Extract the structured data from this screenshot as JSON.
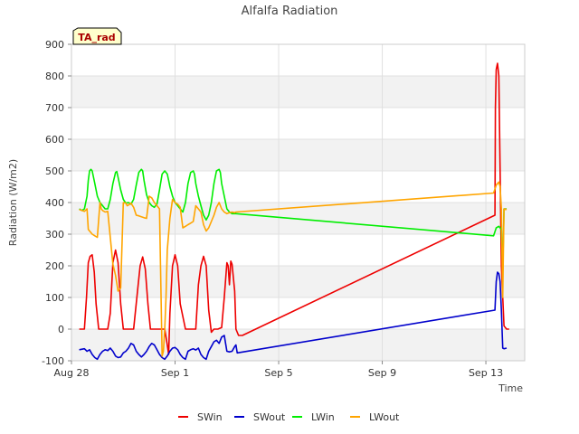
{
  "chart_data": {
    "type": "line",
    "title": "Alfalfa Radiation",
    "badge": "TA_rad",
    "xlabel": "Time",
    "ylabel": "Radiation (W/m2)",
    "xlim": [
      0,
      17.5
    ],
    "ylim": [
      -100,
      900
    ],
    "yticks": [
      -100,
      0,
      100,
      200,
      300,
      400,
      500,
      600,
      700,
      800,
      900
    ],
    "xticks": [
      {
        "value": 0,
        "label": "Aug 28"
      },
      {
        "value": 4,
        "label": "Sep 1"
      },
      {
        "value": 8,
        "label": "Sep 5"
      },
      {
        "value": 12,
        "label": "Sep 9"
      },
      {
        "value": 16,
        "label": "Sep 13"
      }
    ],
    "grid": true,
    "legend_position": "bottom",
    "colors": {
      "SWin": "#ee0000",
      "SWout": "#0000cc",
      "LWin": "#00ee00",
      "LWout": "#ffa500"
    },
    "series": [
      {
        "name": "SWin",
        "x": [
          0.3,
          0.5,
          0.58,
          0.65,
          0.72,
          0.8,
          0.88,
          0.95,
          1.05,
          1.15,
          1.4,
          1.5,
          1.6,
          1.7,
          1.8,
          1.9,
          2.0,
          2.2,
          2.4,
          2.55,
          2.65,
          2.75,
          2.85,
          2.95,
          3.05,
          3.2,
          3.4,
          3.6,
          3.7,
          3.75,
          3.8,
          3.9,
          4.0,
          4.1,
          4.2,
          4.4,
          4.6,
          4.8,
          4.9,
          5.0,
          5.1,
          5.2,
          5.3,
          5.4,
          5.5,
          5.65,
          5.8,
          5.9,
          6.0,
          6.05,
          6.1,
          6.15,
          6.2,
          6.3,
          6.35,
          6.45,
          6.6,
          16.35,
          16.37,
          16.4,
          16.45,
          16.5,
          16.55,
          16.6,
          16.7,
          16.8,
          16.9
        ],
        "y": [
          0,
          0,
          100,
          210,
          230,
          235,
          180,
          80,
          0,
          0,
          0,
          50,
          210,
          250,
          210,
          80,
          0,
          0,
          0,
          120,
          200,
          228,
          190,
          80,
          0,
          0,
          0,
          0,
          -50,
          -80,
          50,
          200,
          235,
          200,
          80,
          0,
          0,
          0,
          140,
          200,
          230,
          200,
          60,
          -10,
          0,
          0,
          5,
          100,
          210,
          200,
          140,
          215,
          205,
          120,
          0,
          -20,
          -20,
          360,
          700,
          820,
          840,
          800,
          500,
          200,
          10,
          0,
          0
        ]
      },
      {
        "name": "SWout",
        "x": [
          0.3,
          0.5,
          0.6,
          0.7,
          0.8,
          0.9,
          1.0,
          1.1,
          1.2,
          1.3,
          1.4,
          1.5,
          1.6,
          1.7,
          1.8,
          1.9,
          2.0,
          2.1,
          2.2,
          2.3,
          2.4,
          2.5,
          2.6,
          2.7,
          2.8,
          2.9,
          3.0,
          3.1,
          3.2,
          3.3,
          3.4,
          3.5,
          3.6,
          3.7,
          3.8,
          3.9,
          4.0,
          4.1,
          4.2,
          4.3,
          4.4,
          4.5,
          4.6,
          4.7,
          4.8,
          4.9,
          5.0,
          5.1,
          5.2,
          5.3,
          5.4,
          5.5,
          5.6,
          5.7,
          5.8,
          5.9,
          6.0,
          6.1,
          6.2,
          6.3,
          6.35,
          6.4,
          16.35,
          16.4,
          16.45,
          16.5,
          16.55,
          16.6,
          16.65,
          16.7,
          16.8
        ],
        "y": [
          -65,
          -62,
          -70,
          -65,
          -80,
          -90,
          -95,
          -80,
          -70,
          -65,
          -68,
          -60,
          -70,
          -85,
          -90,
          -88,
          -75,
          -70,
          -60,
          -45,
          -50,
          -70,
          -80,
          -88,
          -80,
          -70,
          -55,
          -45,
          -50,
          -65,
          -80,
          -90,
          -95,
          -85,
          -70,
          -60,
          -58,
          -65,
          -80,
          -90,
          -95,
          -70,
          -65,
          -62,
          -66,
          -60,
          -80,
          -90,
          -95,
          -70,
          -55,
          -40,
          -35,
          -45,
          -25,
          -20,
          -70,
          -72,
          -70,
          -55,
          -50,
          -75,
          60,
          150,
          180,
          175,
          150,
          60,
          -60,
          -62,
          -60
        ]
      },
      {
        "name": "LWin",
        "x": [
          0.3,
          0.4,
          0.5,
          0.6,
          0.65,
          0.7,
          0.75,
          0.8,
          0.9,
          1.0,
          1.1,
          1.2,
          1.3,
          1.4,
          1.5,
          1.6,
          1.7,
          1.75,
          1.8,
          1.9,
          2.0,
          2.1,
          2.2,
          2.3,
          2.4,
          2.5,
          2.6,
          2.7,
          2.75,
          2.8,
          2.9,
          3.0,
          3.1,
          3.2,
          3.3,
          3.4,
          3.5,
          3.6,
          3.7,
          3.75,
          3.8,
          3.9,
          4.0,
          4.1,
          4.2,
          4.3,
          4.4,
          4.5,
          4.6,
          4.7,
          4.75,
          4.8,
          4.9,
          5.0,
          5.1,
          5.2,
          5.3,
          5.4,
          5.5,
          5.6,
          5.7,
          5.75,
          5.8,
          5.9,
          6.0,
          6.1,
          6.2,
          6.3,
          6.35,
          16.3,
          16.4,
          16.5,
          16.6,
          16.65,
          16.7,
          16.8
        ],
        "y": [
          380,
          375,
          380,
          420,
          470,
          500,
          505,
          500,
          460,
          420,
          400,
          390,
          380,
          380,
          410,
          460,
          495,
          498,
          480,
          440,
          410,
          398,
          400,
          395,
          410,
          455,
          495,
          505,
          500,
          470,
          425,
          400,
          390,
          385,
          395,
          440,
          490,
          500,
          490,
          470,
          450,
          420,
          400,
          390,
          380,
          370,
          400,
          460,
          495,
          500,
          490,
          460,
          420,
          390,
          360,
          345,
          360,
          400,
          460,
          500,
          505,
          495,
          460,
          420,
          380,
          370,
          365,
          365,
          365,
          295,
          320,
          325,
          315,
          180,
          380,
          380
        ]
      },
      {
        "name": "LWout",
        "x": [
          0.3,
          0.4,
          0.5,
          0.6,
          0.65,
          0.7,
          0.75,
          0.8,
          0.9,
          1.0,
          1.1,
          1.15,
          1.2,
          1.3,
          1.4,
          1.5,
          1.6,
          1.7,
          1.8,
          1.9,
          2.0,
          2.1,
          2.15,
          2.2,
          2.3,
          2.4,
          2.5,
          2.6,
          2.7,
          2.8,
          2.9,
          3.0,
          3.1,
          3.2,
          3.3,
          3.4,
          3.5,
          3.55,
          3.6,
          3.65,
          3.7,
          3.8,
          3.9,
          4.0,
          4.1,
          4.2,
          4.3,
          4.4,
          4.5,
          4.6,
          4.7,
          4.8,
          4.9,
          5.0,
          5.1,
          5.2,
          5.3,
          5.4,
          5.5,
          5.6,
          5.7,
          5.8,
          5.9,
          6.0,
          6.1,
          6.2,
          6.3,
          6.35,
          16.3,
          16.4,
          16.5,
          16.55,
          16.6,
          16.65,
          16.7,
          16.8
        ],
        "y": [
          378,
          375,
          372,
          380,
          315,
          310,
          305,
          300,
          295,
          290,
          400,
          380,
          375,
          370,
          372,
          290,
          205,
          170,
          120,
          130,
          400,
          398,
          390,
          392,
          398,
          385,
          360,
          358,
          355,
          352,
          350,
          420,
          415,
          400,
          390,
          380,
          -85,
          -70,
          0,
          100,
          250,
          350,
          410,
          400,
          395,
          385,
          320,
          325,
          330,
          335,
          340,
          390,
          380,
          370,
          330,
          310,
          320,
          340,
          360,
          385,
          400,
          380,
          370,
          365,
          368,
          370,
          368,
          370,
          430,
          455,
          465,
          450,
          380,
          100,
          380,
          378
        ]
      }
    ]
  }
}
